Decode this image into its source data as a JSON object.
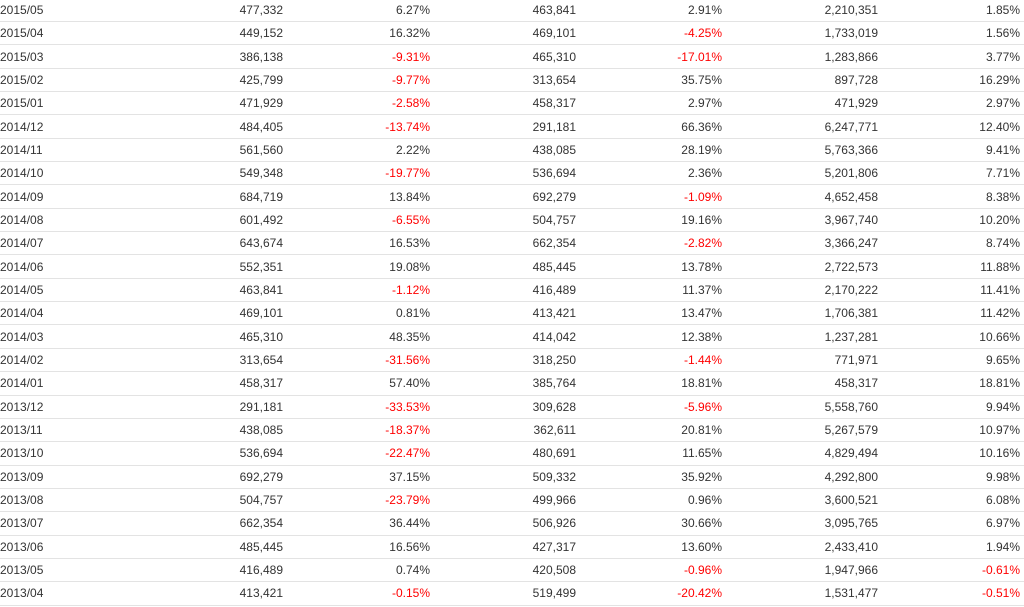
{
  "colors": {
    "text": "#333333",
    "negative": "#ff0000",
    "row_border": "#e3e3e3"
  },
  "rows": [
    [
      "2015/05",
      "477,332",
      "6.27%",
      "463,841",
      "2.91%",
      "2,210,351",
      "1.85%"
    ],
    [
      "2015/04",
      "449,152",
      "16.32%",
      "469,101",
      "-4.25%",
      "1,733,019",
      "1.56%"
    ],
    [
      "2015/03",
      "386,138",
      "-9.31%",
      "465,310",
      "-17.01%",
      "1,283,866",
      "3.77%"
    ],
    [
      "2015/02",
      "425,799",
      "-9.77%",
      "313,654",
      "35.75%",
      "897,728",
      "16.29%"
    ],
    [
      "2015/01",
      "471,929",
      "-2.58%",
      "458,317",
      "2.97%",
      "471,929",
      "2.97%"
    ],
    [
      "2014/12",
      "484,405",
      "-13.74%",
      "291,181",
      "66.36%",
      "6,247,771",
      "12.40%"
    ],
    [
      "2014/11",
      "561,560",
      "2.22%",
      "438,085",
      "28.19%",
      "5,763,366",
      "9.41%"
    ],
    [
      "2014/10",
      "549,348",
      "-19.77%",
      "536,694",
      "2.36%",
      "5,201,806",
      "7.71%"
    ],
    [
      "2014/09",
      "684,719",
      "13.84%",
      "692,279",
      "-1.09%",
      "4,652,458",
      "8.38%"
    ],
    [
      "2014/08",
      "601,492",
      "-6.55%",
      "504,757",
      "19.16%",
      "3,967,740",
      "10.20%"
    ],
    [
      "2014/07",
      "643,674",
      "16.53%",
      "662,354",
      "-2.82%",
      "3,366,247",
      "8.74%"
    ],
    [
      "2014/06",
      "552,351",
      "19.08%",
      "485,445",
      "13.78%",
      "2,722,573",
      "11.88%"
    ],
    [
      "2014/05",
      "463,841",
      "-1.12%",
      "416,489",
      "11.37%",
      "2,170,222",
      "11.41%"
    ],
    [
      "2014/04",
      "469,101",
      "0.81%",
      "413,421",
      "13.47%",
      "1,706,381",
      "11.42%"
    ],
    [
      "2014/03",
      "465,310",
      "48.35%",
      "414,042",
      "12.38%",
      "1,237,281",
      "10.66%"
    ],
    [
      "2014/02",
      "313,654",
      "-31.56%",
      "318,250",
      "-1.44%",
      "771,971",
      "9.65%"
    ],
    [
      "2014/01",
      "458,317",
      "57.40%",
      "385,764",
      "18.81%",
      "458,317",
      "18.81%"
    ],
    [
      "2013/12",
      "291,181",
      "-33.53%",
      "309,628",
      "-5.96%",
      "5,558,760",
      "9.94%"
    ],
    [
      "2013/11",
      "438,085",
      "-18.37%",
      "362,611",
      "20.81%",
      "5,267,579",
      "10.97%"
    ],
    [
      "2013/10",
      "536,694",
      "-22.47%",
      "480,691",
      "11.65%",
      "4,829,494",
      "10.16%"
    ],
    [
      "2013/09",
      "692,279",
      "37.15%",
      "509,332",
      "35.92%",
      "4,292,800",
      "9.98%"
    ],
    [
      "2013/08",
      "504,757",
      "-23.79%",
      "499,966",
      "0.96%",
      "3,600,521",
      "6.08%"
    ],
    [
      "2013/07",
      "662,354",
      "36.44%",
      "506,926",
      "30.66%",
      "3,095,765",
      "6.97%"
    ],
    [
      "2013/06",
      "485,445",
      "16.56%",
      "427,317",
      "13.60%",
      "2,433,410",
      "1.94%"
    ],
    [
      "2013/05",
      "416,489",
      "0.74%",
      "420,508",
      "-0.96%",
      "1,947,966",
      "-0.61%"
    ],
    [
      "2013/04",
      "413,421",
      "-0.15%",
      "519,499",
      "-20.42%",
      "1,531,477",
      "-0.51%"
    ]
  ]
}
